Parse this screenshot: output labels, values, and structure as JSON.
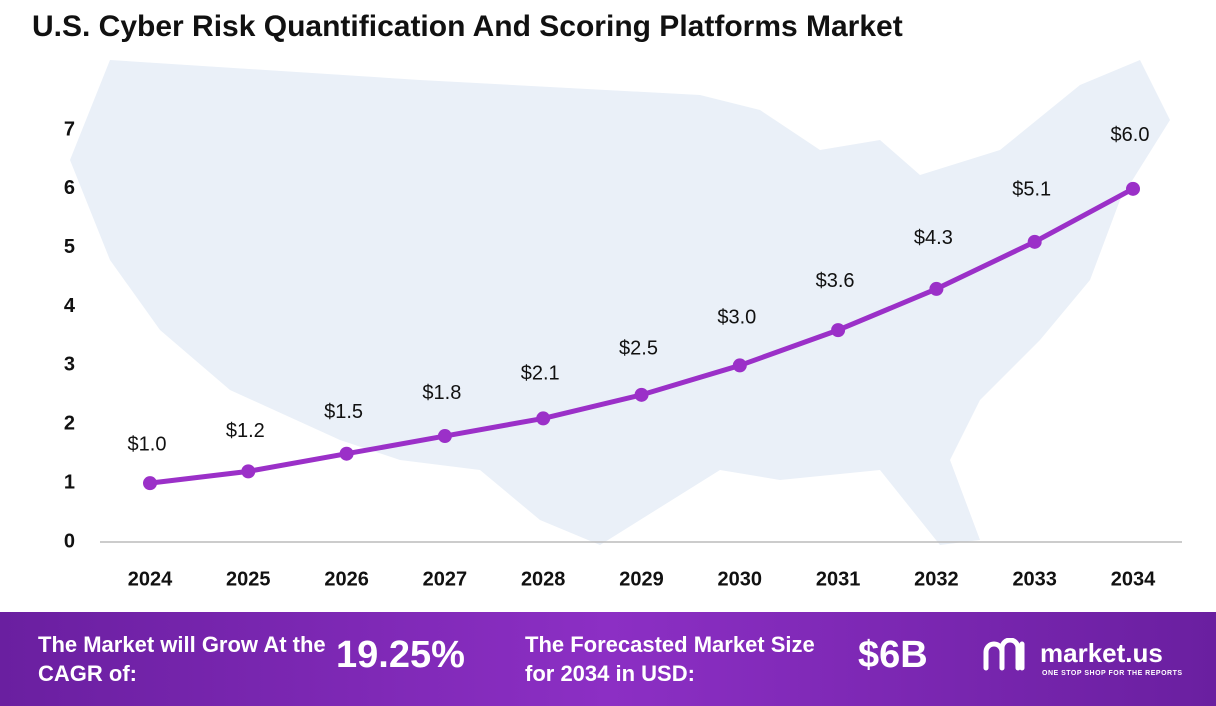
{
  "chart_data": {
    "type": "line",
    "title": "U.S. Cyber Risk Quantification And Scoring Platforms Market",
    "categories": [
      "2024",
      "2025",
      "2026",
      "2027",
      "2028",
      "2029",
      "2030",
      "2031",
      "2032",
      "2033",
      "2034"
    ],
    "values": [
      1.0,
      1.2,
      1.5,
      1.8,
      2.1,
      2.5,
      3.0,
      3.6,
      4.3,
      5.1,
      6.0
    ],
    "value_labels": [
      "$1.0",
      "$1.2",
      "$1.5",
      "$1.8",
      "$2.1",
      "$2.5",
      "$3.0",
      "$3.6",
      "$4.3",
      "$5.1",
      "$6.0"
    ],
    "color": "#9b30c8",
    "ylim": [
      0,
      7
    ],
    "yticks": [
      0,
      1,
      2,
      3,
      4,
      5,
      6,
      7
    ],
    "grid": false
  },
  "footer": {
    "cagr_label": "The Market will Grow At the CAGR of:",
    "cagr_value": "19.25%",
    "forecast_label": "The Forecasted Market Size for 2034 in USD:",
    "forecast_value": "$6B",
    "brand": "market.us",
    "tagline": "ONE STOP SHOP FOR THE REPORTS"
  }
}
